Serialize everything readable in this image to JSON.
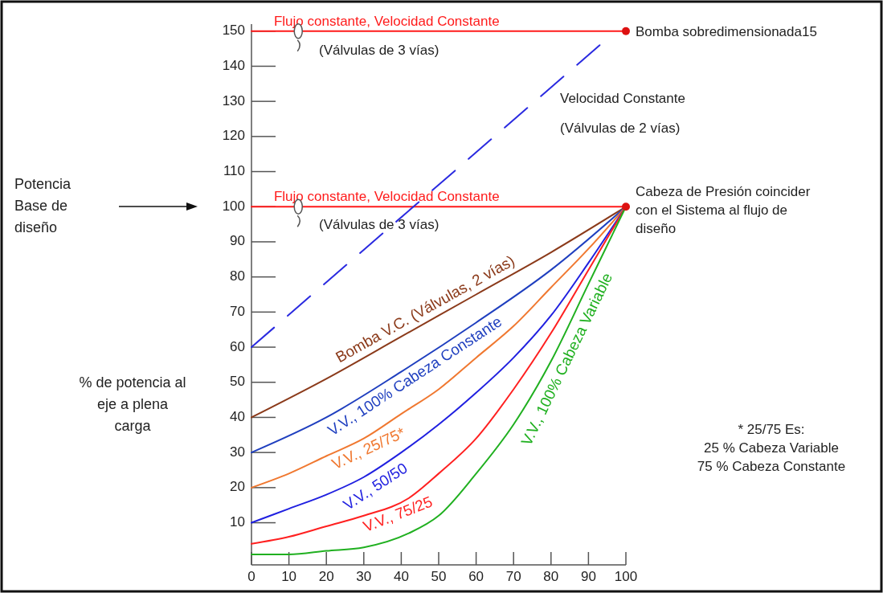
{
  "chart_data": {
    "type": "line",
    "ylabel": "% de potencia al\neje a plena\ncarga",
    "xlim": [
      0,
      100
    ],
    "xticks": [
      0,
      10,
      20,
      30,
      40,
      50,
      60,
      70,
      80,
      90,
      100
    ],
    "ylim": [
      -2,
      152
    ],
    "yticks": [
      10,
      20,
      30,
      40,
      50,
      60,
      70,
      80,
      90,
      100,
      110,
      120,
      130,
      140,
      150
    ],
    "series": [
      {
        "name": "Flujo constante, Velocidad Constante",
        "color": "#ff1a1a",
        "x": [
          0,
          100
        ],
        "values": [
          150,
          150
        ]
      },
      {
        "name": "Flujo constante, Velocidad Constante",
        "color": "#ff1a1a",
        "x": [
          0,
          100
        ],
        "values": [
          100,
          100
        ]
      },
      {
        "name": "Velocidad Constante",
        "color": "#2a2ae0",
        "line_style": "dashed",
        "x": [
          0,
          93
        ],
        "values": [
          60,
          146
        ]
      },
      {
        "name": "Bomba V.C. (Válvulas, 2 vías)",
        "color": "#8b3a1a",
        "x": [
          0,
          20,
          40,
          60,
          80,
          100
        ],
        "values": [
          40,
          51,
          63,
          75,
          87,
          100
        ]
      },
      {
        "name": "V.V., 100% Cabeza Constante",
        "color": "#1f3fbf",
        "x": [
          0,
          20,
          40,
          60,
          80,
          100
        ],
        "values": [
          30,
          40,
          53,
          67,
          82,
          100
        ]
      },
      {
        "name": "V.V., 25/75*",
        "color": "#f07830",
        "x": [
          0,
          10,
          20,
          30,
          40,
          50,
          60,
          70,
          80,
          90,
          100
        ],
        "values": [
          20,
          24,
          29,
          34,
          41,
          48,
          57,
          66,
          77,
          88,
          100
        ]
      },
      {
        "name": "V.V., 50/50",
        "color": "#2020e0",
        "x": [
          0,
          10,
          20,
          30,
          40,
          50,
          60,
          70,
          80,
          90,
          100
        ],
        "values": [
          10,
          14,
          18,
          23,
          30,
          38,
          47,
          57,
          69,
          84,
          100
        ]
      },
      {
        "name": "V.V., 75/25",
        "color": "#ff2020",
        "x": [
          0,
          10,
          20,
          30,
          42,
          50,
          60,
          70,
          80,
          90,
          100
        ],
        "values": [
          4,
          6,
          9,
          12,
          17,
          24,
          34,
          48,
          64,
          82,
          100
        ]
      },
      {
        "name": "V.V., 100% Cabeza Variable",
        "color": "#20b020",
        "x": [
          0,
          10,
          20,
          30,
          42,
          50,
          60,
          70,
          80,
          90,
          100
        ],
        "values": [
          1,
          1,
          2,
          3,
          7,
          12,
          24,
          38,
          56,
          78,
          100
        ]
      },
      {
        "type": "scatter",
        "color": "#dd1111",
        "marker": "circle",
        "x": [
          100,
          100
        ],
        "values": [
          150,
          100
        ]
      }
    ],
    "annotations": [
      "(Válvulas de 3 vías)",
      "(Válvulas de 3 vías)",
      {
        "text": "Bomba sobredimensionada15",
        "x": 100,
        "y": 150
      },
      {
        "text": "Cabeza de Presión coincider\ncon el Sistema al flujo de\ndiseño",
        "x": 100,
        "y": 100
      },
      "(Válvulas de 2 vías)",
      "Potencia\nBase de\ndiseño",
      "* 25/75 Es:\n25 % Cabeza Variable\n75 % Cabeza Constante"
    ]
  }
}
